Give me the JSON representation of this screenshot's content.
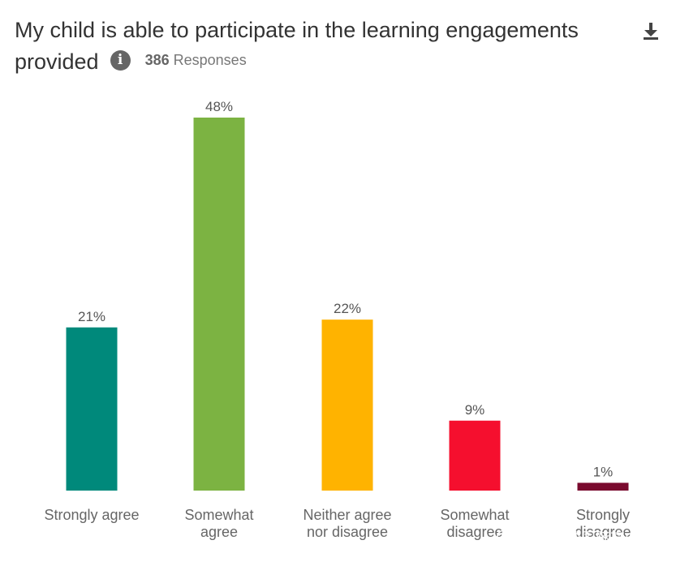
{
  "title_text": "My child is able to participate in the learning engagements provided",
  "response_count": "386",
  "response_label": "Responses",
  "info_icon": "info-icon",
  "download_icon": "download-icon",
  "watermark_text": "苏州德威国际高中",
  "chart_data": {
    "type": "bar",
    "title": "My child is able to participate in the learning engagements provided",
    "xlabel": "",
    "ylabel": "",
    "ylim": [
      0,
      50
    ],
    "grid": false,
    "categories": [
      "Strongly agree",
      "Somewhat agree",
      "Neither agree nor disagree",
      "Somewhat disagree",
      "Strongly disagree"
    ],
    "category_lines": [
      [
        "Strongly agree"
      ],
      [
        "Somewhat",
        "agree"
      ],
      [
        "Neither agree",
        "nor disagree"
      ],
      [
        "Somewhat",
        "disagree"
      ],
      [
        "Strongly",
        "disagree"
      ]
    ],
    "values": [
      21,
      48,
      22,
      9,
      1
    ],
    "value_labels": [
      "21%",
      "48%",
      "22%",
      "9%",
      "1%"
    ],
    "colors": [
      "#00897b",
      "#7cb342",
      "#ffb300",
      "#f50f2e",
      "#7a0a2e"
    ]
  }
}
